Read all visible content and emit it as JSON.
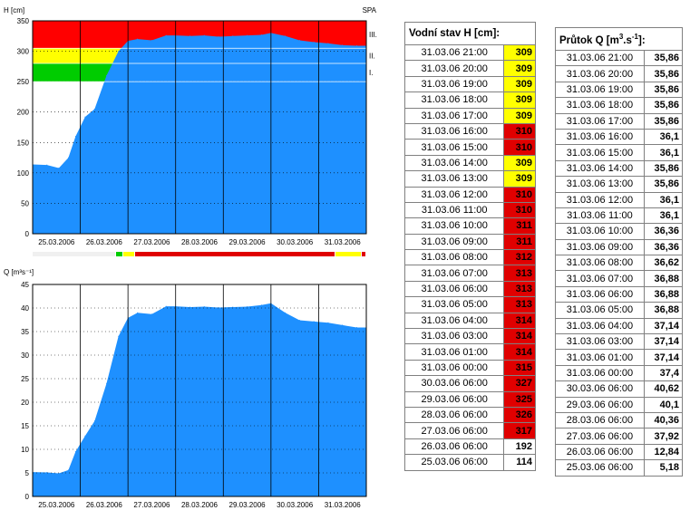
{
  "chart_data": [
    {
      "type": "area",
      "title": "",
      "ylabel": "H [cm]",
      "station": "SPA",
      "ylim": [
        0,
        350
      ],
      "yticks": [
        0,
        50,
        100,
        150,
        200,
        250,
        300,
        350
      ],
      "xticks": [
        "25.03.2006",
        "26.03.2006",
        "27.03.2006",
        "28.03.2006",
        "29.03.2006",
        "30.03.2006",
        "31.03.2006"
      ],
      "xlim": [
        0,
        7
      ],
      "grid": "dotted",
      "fill_color": "#1e90ff",
      "thresholds": [
        {
          "label": "I.",
          "from": 250,
          "to": 280,
          "color": "#00cc00"
        },
        {
          "label": "II.",
          "from": 280,
          "to": 305,
          "color": "#ffff00"
        },
        {
          "label": "III.",
          "from": 305,
          "to": 350,
          "color": "#ff0000"
        }
      ],
      "x": [
        0,
        0.3,
        0.55,
        0.75,
        0.9,
        1.1,
        1.3,
        1.55,
        1.8,
        2.0,
        2.2,
        2.5,
        2.8,
        3.0,
        3.3,
        3.6,
        3.9,
        4.2,
        4.5,
        4.8,
        5.0,
        5.3,
        5.6,
        5.9,
        6.2,
        6.5,
        6.8,
        7.0
      ],
      "values": [
        114,
        113,
        108,
        125,
        160,
        192,
        205,
        260,
        300,
        317,
        320,
        318,
        326,
        326,
        325,
        326,
        324,
        325,
        326,
        327,
        330,
        325,
        318,
        315,
        313,
        310,
        309,
        309
      ]
    },
    {
      "type": "area",
      "title": "",
      "ylabel": "Q [m³s⁻¹]",
      "ylim": [
        0,
        45
      ],
      "yticks": [
        0,
        5,
        10,
        15,
        20,
        25,
        30,
        35,
        40,
        45
      ],
      "xticks": [
        "25.03.2006",
        "26.03.2006",
        "27.03.2006",
        "28.03.2006",
        "29.03.2006",
        "30.03.2006",
        "31.03.2006"
      ],
      "xlim": [
        0,
        7
      ],
      "grid": "dotted",
      "fill_color": "#1e90ff",
      "x": [
        0,
        0.3,
        0.55,
        0.75,
        0.9,
        1.1,
        1.3,
        1.55,
        1.8,
        2.0,
        2.2,
        2.5,
        2.8,
        3.0,
        3.3,
        3.6,
        3.9,
        4.2,
        4.5,
        4.8,
        5.0,
        5.3,
        5.6,
        5.9,
        6.2,
        6.5,
        6.8,
        7.0
      ],
      "values": [
        5.18,
        5.1,
        4.9,
        5.6,
        9.5,
        12.84,
        16,
        24,
        34,
        37.92,
        39,
        38.7,
        40.36,
        40.36,
        40.2,
        40.3,
        40.1,
        40.2,
        40.3,
        40.62,
        41,
        39,
        37.4,
        37.14,
        36.88,
        36.36,
        35.86,
        35.86
      ]
    }
  ],
  "severity_strip": [
    {
      "from": 0,
      "to": 1.75,
      "color": "#f0f0f0"
    },
    {
      "from": 1.75,
      "to": 1.9,
      "color": "#00cc00"
    },
    {
      "from": 1.9,
      "to": 2.15,
      "color": "#ffff00"
    },
    {
      "from": 2.15,
      "to": 6.35,
      "color": "#e00000"
    },
    {
      "from": 6.35,
      "to": 6.9,
      "color": "#ffff00"
    },
    {
      "from": 6.9,
      "to": 7.0,
      "color": "#e00000"
    }
  ],
  "level_colors": {
    "normal": "#ffffff",
    "yellow": "#ffff00",
    "red": "#e00000"
  },
  "table_h": {
    "header": "Vodní stav H [cm]:",
    "rows": [
      {
        "dt": "31.03.06 21:00",
        "val": "309",
        "level": "yellow"
      },
      {
        "dt": "31.03.06 20:00",
        "val": "309",
        "level": "yellow"
      },
      {
        "dt": "31.03.06 19:00",
        "val": "309",
        "level": "yellow"
      },
      {
        "dt": "31.03.06 18:00",
        "val": "309",
        "level": "yellow"
      },
      {
        "dt": "31.03.06 17:00",
        "val": "309",
        "level": "yellow"
      },
      {
        "dt": "31.03.06 16:00",
        "val": "310",
        "level": "red"
      },
      {
        "dt": "31.03.06 15:00",
        "val": "310",
        "level": "red"
      },
      {
        "dt": "31.03.06 14:00",
        "val": "309",
        "level": "yellow"
      },
      {
        "dt": "31.03.06 13:00",
        "val": "309",
        "level": "yellow"
      },
      {
        "dt": "31.03.06 12:00",
        "val": "310",
        "level": "red"
      },
      {
        "dt": "31.03.06 11:00",
        "val": "310",
        "level": "red"
      },
      {
        "dt": "31.03.06 10:00",
        "val": "311",
        "level": "red"
      },
      {
        "dt": "31.03.06 09:00",
        "val": "311",
        "level": "red"
      },
      {
        "dt": "31.03.06 08:00",
        "val": "312",
        "level": "red"
      },
      {
        "dt": "31.03.06 07:00",
        "val": "313",
        "level": "red"
      },
      {
        "dt": "31.03.06 06:00",
        "val": "313",
        "level": "red"
      },
      {
        "dt": "31.03.06 05:00",
        "val": "313",
        "level": "red"
      },
      {
        "dt": "31.03.06 04:00",
        "val": "314",
        "level": "red"
      },
      {
        "dt": "31.03.06 03:00",
        "val": "314",
        "level": "red"
      },
      {
        "dt": "31.03.06 01:00",
        "val": "314",
        "level": "red"
      },
      {
        "dt": "31.03.06 00:00",
        "val": "315",
        "level": "red"
      },
      {
        "dt": "30.03.06 06:00",
        "val": "327",
        "level": "red"
      },
      {
        "dt": "29.03.06 06:00",
        "val": "325",
        "level": "red"
      },
      {
        "dt": "28.03.06 06:00",
        "val": "326",
        "level": "red"
      },
      {
        "dt": "27.03.06 06:00",
        "val": "317",
        "level": "red"
      },
      {
        "dt": "26.03.06 06:00",
        "val": "192",
        "level": "normal"
      },
      {
        "dt": "25.03.06 06:00",
        "val": "114",
        "level": "normal"
      }
    ]
  },
  "table_q": {
    "header_main": "Průtok Q [m",
    "header_sup1": "3",
    "header_mid": ".s",
    "header_sup2": "-1",
    "header_end": "]:",
    "rows": [
      {
        "dt": "31.03.06 21:00",
        "val": "35,86"
      },
      {
        "dt": "31.03.06 20:00",
        "val": "35,86"
      },
      {
        "dt": "31.03.06 19:00",
        "val": "35,86"
      },
      {
        "dt": "31.03.06 18:00",
        "val": "35,86"
      },
      {
        "dt": "31.03.06 17:00",
        "val": "35,86"
      },
      {
        "dt": "31.03.06 16:00",
        "val": "36,1"
      },
      {
        "dt": "31.03.06 15:00",
        "val": "36,1"
      },
      {
        "dt": "31.03.06 14:00",
        "val": "35,86"
      },
      {
        "dt": "31.03.06 13:00",
        "val": "35,86"
      },
      {
        "dt": "31.03.06 12:00",
        "val": "36,1"
      },
      {
        "dt": "31.03.06 11:00",
        "val": "36,1"
      },
      {
        "dt": "31.03.06 10:00",
        "val": "36,36"
      },
      {
        "dt": "31.03.06 09:00",
        "val": "36,36"
      },
      {
        "dt": "31.03.06 08:00",
        "val": "36,62"
      },
      {
        "dt": "31.03.06 07:00",
        "val": "36,88"
      },
      {
        "dt": "31.03.06 06:00",
        "val": "36,88"
      },
      {
        "dt": "31.03.06 05:00",
        "val": "36,88"
      },
      {
        "dt": "31.03.06 04:00",
        "val": "37,14"
      },
      {
        "dt": "31.03.06 03:00",
        "val": "37,14"
      },
      {
        "dt": "31.03.06 01:00",
        "val": "37,14"
      },
      {
        "dt": "31.03.06 00:00",
        "val": "37,4"
      },
      {
        "dt": "30.03.06 06:00",
        "val": "40,62"
      },
      {
        "dt": "29.03.06 06:00",
        "val": "40,1"
      },
      {
        "dt": "28.03.06 06:00",
        "val": "40,36"
      },
      {
        "dt": "27.03.06 06:00",
        "val": "37,92"
      },
      {
        "dt": "26.03.06 06:00",
        "val": "12,84"
      },
      {
        "dt": "25.03.06 06:00",
        "val": "5,18"
      }
    ]
  }
}
